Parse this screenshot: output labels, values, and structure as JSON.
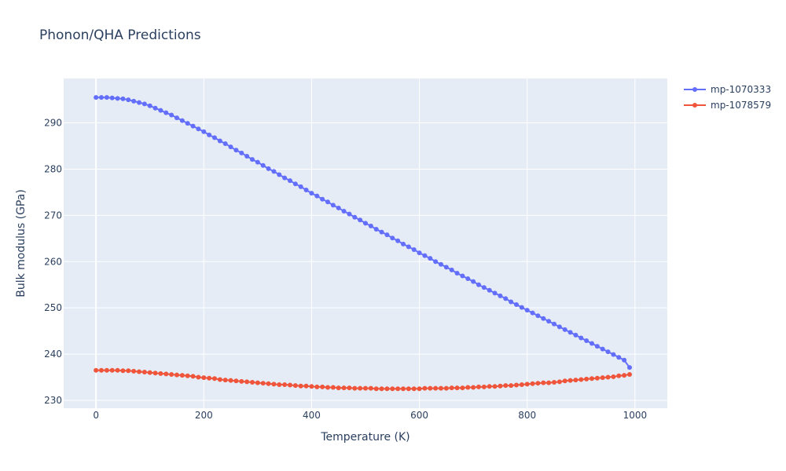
{
  "chart_data": {
    "type": "line",
    "title": "Phonon/QHA Predictions",
    "xlabel": "Temperature (K)",
    "ylabel": "Bulk modulus (GPa)",
    "xlim": [
      -60,
      1060
    ],
    "ylim": [
      228.3,
      299.6
    ],
    "xticks": [
      0,
      200,
      400,
      600,
      800,
      1000
    ],
    "yticks": [
      230,
      240,
      250,
      260,
      270,
      280,
      290
    ],
    "grid": true,
    "legend_position": "top-right",
    "x": [
      0,
      10,
      20,
      30,
      40,
      50,
      60,
      70,
      80,
      90,
      100,
      110,
      120,
      130,
      140,
      150,
      160,
      170,
      180,
      190,
      200,
      210,
      220,
      230,
      240,
      250,
      260,
      270,
      280,
      290,
      300,
      310,
      320,
      330,
      340,
      350,
      360,
      370,
      380,
      390,
      400,
      410,
      420,
      430,
      440,
      450,
      460,
      470,
      480,
      490,
      500,
      510,
      520,
      530,
      540,
      550,
      560,
      570,
      580,
      590,
      600,
      610,
      620,
      630,
      640,
      650,
      660,
      670,
      680,
      690,
      700,
      710,
      720,
      730,
      740,
      750,
      760,
      770,
      780,
      790,
      800,
      810,
      820,
      830,
      840,
      850,
      860,
      870,
      880,
      890,
      900,
      910,
      920,
      930,
      940,
      950,
      960,
      970,
      980,
      990
    ],
    "series": [
      {
        "name": "mp-1070333",
        "color": "#636efa",
        "values": [
          295.5,
          295.5,
          295.5,
          295.4,
          295.3,
          295.2,
          295.0,
          294.7,
          294.4,
          294.1,
          293.7,
          293.2,
          292.7,
          292.2,
          291.7,
          291.1,
          290.5,
          289.9,
          289.3,
          288.7,
          288.1,
          287.4,
          286.8,
          286.1,
          285.5,
          284.8,
          284.1,
          283.5,
          282.8,
          282.1,
          281.5,
          280.8,
          280.1,
          279.5,
          278.8,
          278.1,
          277.5,
          276.8,
          276.2,
          275.5,
          274.8,
          274.2,
          273.5,
          272.9,
          272.2,
          271.6,
          270.9,
          270.3,
          269.6,
          269.0,
          268.3,
          267.7,
          267.0,
          266.4,
          265.8,
          265.1,
          264.5,
          263.8,
          263.2,
          262.6,
          261.9,
          261.3,
          260.7,
          260.0,
          259.4,
          258.8,
          258.2,
          257.5,
          256.9,
          256.3,
          255.7,
          255.0,
          254.4,
          253.8,
          253.2,
          252.6,
          252.0,
          251.3,
          250.7,
          250.1,
          249.5,
          248.9,
          248.3,
          247.7,
          247.1,
          246.5,
          245.9,
          245.3,
          244.7,
          244.1,
          243.5,
          242.9,
          242.3,
          241.7,
          241.1,
          240.5,
          239.9,
          239.3,
          238.7,
          237.1
        ]
      },
      {
        "name": "mp-1078579",
        "color": "#ef553b",
        "values": [
          236.5,
          236.5,
          236.5,
          236.5,
          236.5,
          236.4,
          236.4,
          236.3,
          236.2,
          236.1,
          236.0,
          235.9,
          235.8,
          235.7,
          235.6,
          235.5,
          235.4,
          235.3,
          235.2,
          235.0,
          234.9,
          234.8,
          234.7,
          234.5,
          234.4,
          234.3,
          234.2,
          234.1,
          234.0,
          233.9,
          233.8,
          233.7,
          233.6,
          233.5,
          233.4,
          233.4,
          233.3,
          233.2,
          233.1,
          233.1,
          233.0,
          232.9,
          232.9,
          232.8,
          232.8,
          232.7,
          232.7,
          232.7,
          232.6,
          232.6,
          232.6,
          232.6,
          232.5,
          232.5,
          232.5,
          232.5,
          232.5,
          232.5,
          232.5,
          232.5,
          232.5,
          232.6,
          232.6,
          232.6,
          232.6,
          232.6,
          232.7,
          232.7,
          232.7,
          232.8,
          232.8,
          232.9,
          232.9,
          233.0,
          233.0,
          233.1,
          233.2,
          233.2,
          233.3,
          233.4,
          233.5,
          233.6,
          233.7,
          233.8,
          233.8,
          233.9,
          234.0,
          234.2,
          234.3,
          234.4,
          234.5,
          234.6,
          234.7,
          234.8,
          234.9,
          235.0,
          235.1,
          235.3,
          235.4,
          235.6
        ]
      }
    ]
  }
}
